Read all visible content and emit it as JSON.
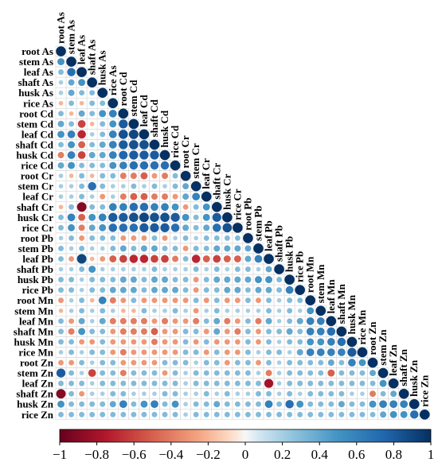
{
  "chart_data": {
    "type": "heatmap",
    "subtype": "correlation-matrix-lower-triangle",
    "variables": [
      "root As",
      "stem As",
      "leaf As",
      "shaft As",
      "husk As",
      "rice As",
      "root Cd",
      "stem Cd",
      "leaf Cd",
      "shaft Cd",
      "husk Cd",
      "rice Cd",
      "root Cr",
      "stem Cr",
      "leaf Cr",
      "shaft Cr",
      "husk Cr",
      "rice Cr",
      "root Pb",
      "stem Pb",
      "leaf Pb",
      "shaft Pb",
      "husk Pb",
      "rice Pb",
      "root Mn",
      "stem Mn",
      "leaf Mn",
      "shaft Mn",
      "husk Mn",
      "rice Mn",
      "root Zn",
      "stem Zn",
      "leaf Zn",
      "shaft Zn",
      "husk Zn",
      "rice Zn"
    ],
    "values": [
      [
        1
      ],
      [
        0.5,
        1
      ],
      [
        0.3,
        0.7,
        1
      ],
      [
        0.2,
        0.4,
        0.5,
        1
      ],
      [
        0.2,
        0.4,
        0.3,
        0.3,
        1
      ],
      [
        -0.2,
        0.3,
        -0.2,
        0.3,
        0.3,
        1
      ],
      [
        0.3,
        -0.2,
        0.4,
        0.3,
        0.5,
        0.6,
        1
      ],
      [
        0.4,
        0.3,
        -0.6,
        -0.2,
        0.3,
        0.5,
        0.8,
        1
      ],
      [
        0.5,
        0.6,
        -0.7,
        0.2,
        0.3,
        0.6,
        0.85,
        0.9,
        1
      ],
      [
        0.3,
        0.5,
        -0.5,
        0.3,
        0.4,
        0.6,
        0.8,
        0.85,
        0.85,
        1
      ],
      [
        -0.4,
        0.6,
        -0.6,
        0.4,
        0.4,
        0.6,
        0.75,
        0.8,
        0.8,
        0.8,
        1
      ],
      [
        0.4,
        0.5,
        0.3,
        0.3,
        0.3,
        0.5,
        0.6,
        0.7,
        0.7,
        0.7,
        0.7,
        1
      ],
      [
        0.2,
        -0.2,
        0.3,
        -0.2,
        0.3,
        0.3,
        -0.4,
        -0.4,
        -0.5,
        -0.3,
        -0.4,
        0.3,
        1
      ],
      [
        0.2,
        0.2,
        0.3,
        0.7,
        0.3,
        0.2,
        0.2,
        0.3,
        0.2,
        0.3,
        0.2,
        0.3,
        0.4,
        1
      ],
      [
        0.2,
        0.2,
        0.3,
        0.2,
        -0.3,
        0.2,
        -0.4,
        -0.5,
        -0.5,
        -0.4,
        -0.4,
        -0.3,
        0.4,
        0.6,
        1
      ],
      [
        -0.2,
        0.3,
        -0.9,
        0.3,
        0.3,
        0.6,
        0.6,
        0.7,
        0.7,
        0.6,
        0.6,
        0.5,
        -0.3,
        0.3,
        0.5,
        1
      ],
      [
        0.3,
        0.6,
        -0.5,
        0.5,
        0.6,
        0.8,
        0.8,
        0.85,
        0.9,
        0.85,
        0.85,
        0.8,
        0.5,
        0.3,
        0.5,
        0.8,
        1
      ],
      [
        0.3,
        0.5,
        -0.4,
        0.4,
        0.5,
        0.7,
        0.7,
        0.7,
        0.8,
        0.8,
        0.8,
        0.7,
        0.4,
        0.3,
        0.4,
        0.7,
        0.85,
        1
      ],
      [
        0.2,
        0.3,
        -0.3,
        0.3,
        0.3,
        0.3,
        -0.3,
        -0.3,
        -0.3,
        0.3,
        -0.3,
        0.2,
        0.3,
        0.2,
        0.3,
        0.3,
        0.3,
        0.3,
        1
      ],
      [
        0.3,
        0.2,
        0.3,
        0.2,
        0.2,
        0.3,
        0.4,
        0.3,
        0.4,
        0.4,
        0.3,
        0.3,
        -0.3,
        0.3,
        0.3,
        0.4,
        0.4,
        0.4,
        0.4,
        1
      ],
      [
        0.3,
        -0.3,
        0.9,
        -0.2,
        -0.3,
        -0.5,
        -0.6,
        -0.7,
        -0.7,
        -0.6,
        -0.6,
        -0.4,
        0.3,
        -0.7,
        -0.5,
        -0.6,
        -0.5,
        -0.5,
        0.4,
        0.6,
        1
      ],
      [
        0.2,
        0.2,
        0.3,
        0.5,
        0.2,
        0.2,
        0.2,
        0.2,
        0.2,
        0.3,
        0.2,
        0.2,
        0.2,
        0.3,
        0.2,
        0.3,
        0.2,
        0.3,
        0.3,
        0.2,
        0.4,
        1
      ],
      [
        0.3,
        0.3,
        0.2,
        0.3,
        0.3,
        0.3,
        0.4,
        0.4,
        0.3,
        0.4,
        0.4,
        0.3,
        0.3,
        -0.3,
        0.3,
        0.4,
        0.4,
        0.4,
        0.4,
        0.5,
        0.5,
        0.3,
        1
      ],
      [
        0.3,
        0.3,
        0.2,
        0.3,
        0.3,
        0.4,
        0.4,
        0.4,
        0.3,
        0.4,
        0.4,
        0.4,
        0.3,
        -0.3,
        0.3,
        0.3,
        0.4,
        0.4,
        0.3,
        0.4,
        0.4,
        0.3,
        0.6,
        1
      ],
      [
        -0.3,
        0.2,
        0.3,
        -0.2,
        0.6,
        -0.4,
        -0.3,
        0.3,
        -0.3,
        -0.3,
        -0.3,
        -0.3,
        -0.3,
        0.3,
        -0.3,
        0.3,
        -0.3,
        -0.3,
        0.3,
        -0.3,
        0.3,
        0.2,
        0.3,
        0.3,
        1
      ],
      [
        -0.2,
        0.2,
        0.3,
        0.2,
        0.3,
        0.2,
        -0.2,
        -0.2,
        0.3,
        0.2,
        0.2,
        0.3,
        0.2,
        -0.3,
        0.2,
        0.3,
        0.2,
        0.2,
        0.2,
        0.2,
        0.3,
        0.2,
        0.3,
        0.2,
        0.5,
        1
      ],
      [
        0.3,
        -0.3,
        0.4,
        0.2,
        0.4,
        -0.4,
        -0.4,
        -0.4,
        -0.4,
        -0.3,
        -0.4,
        -0.3,
        -0.3,
        -0.4,
        0.3,
        0.4,
        -0.4,
        -0.3,
        0.3,
        -0.4,
        0.4,
        0.2,
        0.3,
        0.4,
        0.6,
        0.6,
        1
      ],
      [
        0.3,
        -0.4,
        0.5,
        0.3,
        0.3,
        -0.3,
        -0.4,
        -0.4,
        -0.4,
        -0.5,
        -0.3,
        -0.3,
        0.3,
        0.3,
        -0.3,
        0.4,
        -0.3,
        -0.4,
        0.3,
        -0.3,
        0.3,
        0.3,
        0.4,
        0.3,
        0.6,
        0.6,
        0.7,
        1
      ],
      [
        0.3,
        0.3,
        -0.3,
        -0.3,
        0.3,
        -0.3,
        -0.3,
        -0.3,
        -0.3,
        -0.4,
        -0.3,
        -0.3,
        0.3,
        -0.3,
        0.3,
        -0.3,
        -0.3,
        -0.3,
        0.3,
        -0.3,
        0.3,
        0.2,
        0.3,
        0.3,
        0.5,
        0.5,
        0.6,
        0.7,
        1
      ],
      [
        0.2,
        0.3,
        0.2,
        0.3,
        0.3,
        -0.3,
        -0.4,
        -0.3,
        -0.3,
        -0.3,
        -0.3,
        -0.3,
        0.3,
        0.3,
        -0.3,
        0.3,
        -0.3,
        -0.3,
        0.3,
        0.2,
        0.3,
        0.3,
        0.2,
        0.4,
        0.6,
        0.6,
        0.6,
        0.6,
        0.8,
        1
      ],
      [
        -0.3,
        -0.3,
        0.3,
        0.2,
        0.3,
        0.3,
        -0.3,
        -0.3,
        -0.3,
        -0.3,
        0.3,
        0.3,
        0.3,
        0.2,
        0.3,
        0.3,
        -0.3,
        0.3,
        0.3,
        -0.3,
        0.3,
        0.2,
        0.3,
        0.3,
        0.3,
        0.3,
        0.4,
        0.3,
        0.6,
        0.5,
        1
      ],
      [
        0.8,
        0.3,
        0.2,
        -0.6,
        0.3,
        0.3,
        -0.4,
        0.3,
        0.3,
        0.3,
        -0.3,
        0.3,
        0.2,
        0.3,
        0.3,
        0.3,
        0.3,
        0.3,
        0.3,
        0.2,
        -0.4,
        0.2,
        0.3,
        0.3,
        0.3,
        0.3,
        -0.5,
        0.3,
        0.3,
        0.3,
        0.4,
        1
      ],
      [
        0.3,
        0.3,
        0.3,
        0.2,
        0.3,
        0.3,
        0.3,
        0.3,
        0.3,
        0.3,
        0.3,
        0.3,
        0.2,
        0.3,
        0.3,
        0.3,
        0.3,
        0.3,
        0.3,
        0.3,
        -0.8,
        0.2,
        0.3,
        0.3,
        0.3,
        0.3,
        0.3,
        0.3,
        0.3,
        0.3,
        0.3,
        0.5,
        1
      ],
      [
        -0.9,
        0.3,
        -0.3,
        0.2,
        0.2,
        0.3,
        0.3,
        0.2,
        0.2,
        0.2,
        0.3,
        0.3,
        0.2,
        0.2,
        0.3,
        0.2,
        0.3,
        0.2,
        0.2,
        0.3,
        0.3,
        0.2,
        0.3,
        0.2,
        0.3,
        0.3,
        0.3,
        0.3,
        0.2,
        0.2,
        -0.4,
        0.3,
        0.4,
        1
      ],
      [
        0.5,
        0.3,
        0.3,
        0.3,
        0.3,
        0.4,
        0.6,
        0.3,
        0.5,
        0.6,
        0.3,
        0.5,
        0.2,
        0.3,
        0.3,
        0.4,
        0.3,
        0.3,
        0.3,
        0.3,
        0.6,
        0.3,
        0.7,
        0.5,
        0.3,
        0.3,
        0.3,
        0.4,
        0.3,
        0.3,
        0.5,
        0.6,
        0.6,
        0.6,
        1
      ],
      [
        0.3,
        0.3,
        0.3,
        0.3,
        0.3,
        0.3,
        0.3,
        0.3,
        0.3,
        0.3,
        0.3,
        0.3,
        0.2,
        0.3,
        0.3,
        0.3,
        0.3,
        0.3,
        0.3,
        0.3,
        0.3,
        0.3,
        0.3,
        0.3,
        0.3,
        0.3,
        0.3,
        0.3,
        0.3,
        0.3,
        0.3,
        0.4,
        0.5,
        0.5,
        0.7,
        1
      ]
    ],
    "colorbar": {
      "min": -1,
      "max": 1,
      "ticks": [
        -1,
        -0.8,
        -0.6,
        -0.4,
        -0.2,
        0,
        0.2,
        0.4,
        0.6,
        0.8,
        1
      ],
      "tick_labels": [
        "−1",
        "−0.8",
        "−0.6",
        "−0.4",
        "−0.2",
        "0",
        "0.2",
        "0.4",
        "0.6",
        "0.8",
        "1"
      ]
    },
    "colors": {
      "negative": "#67001f",
      "zero": "#f7f7f7",
      "positive": "#053061"
    }
  }
}
